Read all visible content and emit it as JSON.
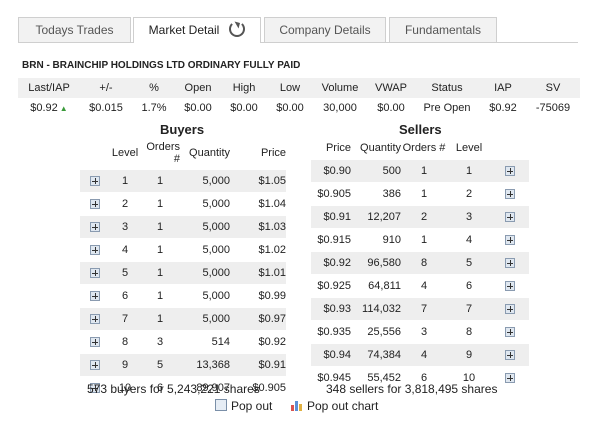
{
  "tabs": [
    "Todays Trades",
    "Market Detail",
    "Company Details",
    "Fundamentals"
  ],
  "company": "BRN - BRAINCHIP HOLDINGS LTD ORDINARY FULLY PAID",
  "quote": {
    "headers": [
      "Last/IAP",
      "+/-",
      "%",
      "Open",
      "High",
      "Low",
      "Volume",
      "VWAP",
      "Status",
      "IAP",
      "SV"
    ],
    "values": [
      "$0.92",
      "$0.015",
      "1.7%",
      "$0.00",
      "$0.00",
      "$0.00",
      "30,000",
      "$0.00",
      "Pre Open",
      "$0.92",
      "-75069"
    ]
  },
  "buyers": {
    "title": "Buyers",
    "headers": [
      "Level",
      "Orders #",
      "Quantity",
      "Price"
    ],
    "rows": [
      [
        "1",
        "1",
        "5,000",
        "$1.05"
      ],
      [
        "2",
        "1",
        "5,000",
        "$1.04"
      ],
      [
        "3",
        "1",
        "5,000",
        "$1.03"
      ],
      [
        "4",
        "1",
        "5,000",
        "$1.02"
      ],
      [
        "5",
        "1",
        "5,000",
        "$1.01"
      ],
      [
        "6",
        "1",
        "5,000",
        "$0.99"
      ],
      [
        "7",
        "1",
        "5,000",
        "$0.97"
      ],
      [
        "8",
        "3",
        "514",
        "$0.92"
      ],
      [
        "9",
        "5",
        "13,368",
        "$0.91"
      ],
      [
        "10",
        "6",
        "89,907",
        "$0.905"
      ]
    ],
    "summary": "573 buyers for 5,243,221 shares"
  },
  "sellers": {
    "title": "Sellers",
    "headers": [
      "Price",
      "Quantity",
      "Orders #",
      "Level"
    ],
    "rows": [
      [
        "$0.90",
        "500",
        "1",
        "1"
      ],
      [
        "$0.905",
        "386",
        "1",
        "2"
      ],
      [
        "$0.91",
        "12,207",
        "2",
        "3"
      ],
      [
        "$0.915",
        "910",
        "1",
        "4"
      ],
      [
        "$0.92",
        "96,580",
        "8",
        "5"
      ],
      [
        "$0.925",
        "64,811",
        "4",
        "6"
      ],
      [
        "$0.93",
        "114,032",
        "7",
        "7"
      ],
      [
        "$0.935",
        "25,556",
        "3",
        "8"
      ],
      [
        "$0.94",
        "74,384",
        "4",
        "9"
      ],
      [
        "$0.945",
        "55,452",
        "6",
        "10"
      ]
    ],
    "summary": "348 sellers for 3,818,495 shares"
  },
  "popout": {
    "label": "Pop out",
    "chart_label": "Pop out chart"
  },
  "colors": {
    "up_arrow": "#3a9a3a",
    "row_stripe": "#eeeeee",
    "header_bg": "#f0f0f0"
  },
  "icons": {
    "refresh": "refresh-icon",
    "expand": "plus-box-icon",
    "chart": "bar-chart-icon"
  }
}
